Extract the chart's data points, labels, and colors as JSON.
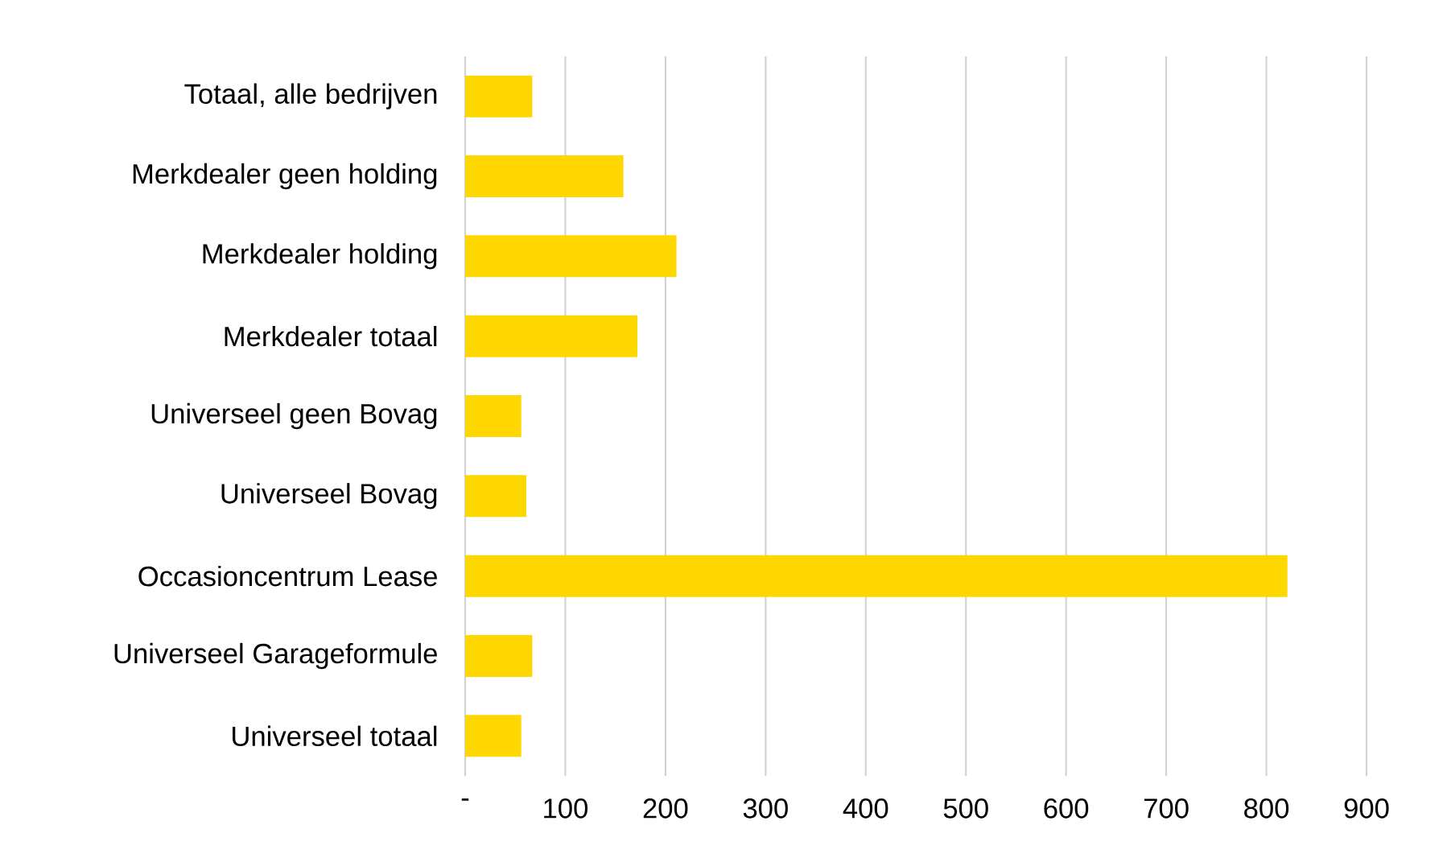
{
  "chart_data": {
    "type": "bar",
    "orientation": "horizontal",
    "categories": [
      "Totaal, alle bedrijven",
      "Merkdealer geen holding",
      "Merkdealer holding",
      "Merkdealer totaal",
      "Universeel geen Bovag",
      "Universeel Bovag",
      "Occasioncentrum Lease",
      "Universeel Garageformule",
      "Universeel totaal"
    ],
    "values": [
      67,
      158,
      211,
      172,
      56,
      61,
      821,
      67,
      56
    ],
    "color": "#ffd700",
    "xlim": [
      0,
      900
    ],
    "xticks": [
      {
        "value": 0,
        "label": "-"
      },
      100,
      200,
      300,
      400,
      500,
      600,
      700,
      800,
      900
    ],
    "grid": "x"
  }
}
